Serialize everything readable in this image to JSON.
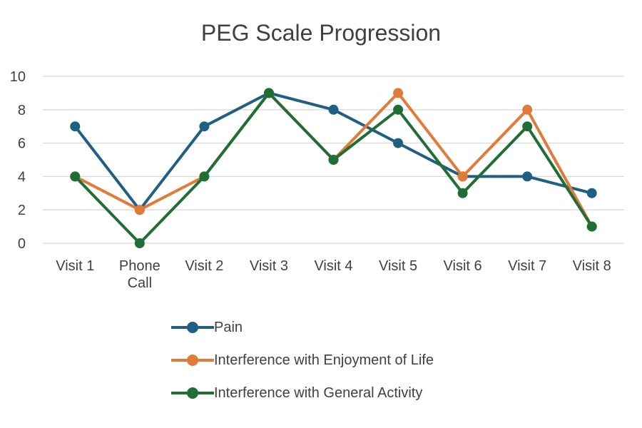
{
  "chart_data": {
    "type": "line",
    "title": "PEG Scale Progression",
    "categories": [
      [
        "Visit 1"
      ],
      [
        "Phone",
        "Call"
      ],
      [
        "Visit 2"
      ],
      [
        "Visit 3"
      ],
      [
        "Visit 4"
      ],
      [
        "Visit 5"
      ],
      [
        "Visit 6"
      ],
      [
        "Visit 7"
      ],
      [
        "Visit 8"
      ]
    ],
    "ylim": [
      0,
      10
    ],
    "yticks": [
      "0",
      "2",
      "4",
      "6",
      "8",
      "10"
    ],
    "grid": true,
    "legend_position": "bottom",
    "series": [
      {
        "name": "Pain",
        "color": "#1f5f82",
        "values": [
          7,
          2,
          7,
          9,
          8,
          6,
          4,
          4,
          3
        ]
      },
      {
        "name": "Interference with Enjoyment of Life",
        "color": "#e07b39",
        "values": [
          4,
          2,
          4,
          9,
          5,
          9,
          4,
          8,
          1
        ]
      },
      {
        "name": "Interference with General Activity",
        "color": "#1f6e36",
        "values": [
          4,
          0,
          4,
          9,
          5,
          8,
          3,
          7,
          1
        ]
      }
    ]
  }
}
